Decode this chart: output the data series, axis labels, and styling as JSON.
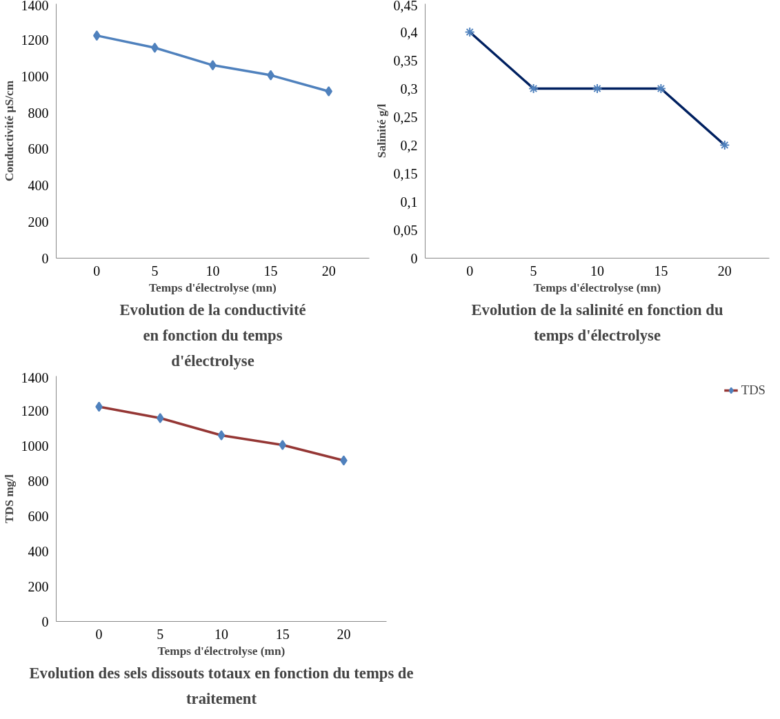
{
  "chart_data": [
    {
      "type": "line",
      "title": "Evolution de la conductivité en fonction du temps d'électrolyse",
      "xlabel": "Temps d'électrolyse (mn)",
      "ylabel": "Conductivité µS/cm",
      "categories": [
        "0",
        "5",
        "10",
        "15",
        "20"
      ],
      "series": [
        {
          "color": "#4f81bd",
          "values": [
            1225,
            1158,
            1062,
            1007,
            918
          ]
        }
      ],
      "ylim": [
        0,
        1400
      ],
      "yticks": [
        0,
        200,
        400,
        600,
        800,
        1000,
        1200,
        1400
      ],
      "marker": "diamond",
      "grid": false,
      "legend": false
    },
    {
      "type": "line",
      "title": "Evolution de la salinité en fonction du temps d'électrolyse",
      "xlabel": "Temps d'électrolyse (mn)",
      "ylabel": "Salinité g/l",
      "categories": [
        "0",
        "5",
        "10",
        "15",
        "20"
      ],
      "series": [
        {
          "color": "#002060",
          "values": [
            0.4,
            0.3,
            0.3,
            0.3,
            0.2
          ]
        }
      ],
      "ylim": [
        0,
        0.45
      ],
      "yticks": [
        0,
        {
          "value": 0.05,
          "label": "0,05"
        },
        {
          "value": 0.1,
          "label": "0,1"
        },
        {
          "value": 0.15,
          "label": "0,15"
        },
        {
          "value": 0.2,
          "label": "0,2"
        },
        {
          "value": 0.25,
          "label": "0,25"
        },
        {
          "value": 0.3,
          "label": "0,3"
        },
        {
          "value": 0.35,
          "label": "0,35"
        },
        {
          "value": 0.4,
          "label": "0,4"
        },
        {
          "value": 0.45,
          "label": "0,45"
        }
      ],
      "marker": "cross",
      "grid": false,
      "legend": false
    },
    {
      "type": "line",
      "title": "Evolution des sels dissouts totaux en fonction du temps de traitement",
      "xlabel": "Temps d'électrolyse (mn)",
      "ylabel": "TDS mg/l",
      "categories": [
        "0",
        "5",
        "10",
        "15",
        "20"
      ],
      "series": [
        {
          "name": "TDS",
          "color": "#953735",
          "values": [
            1225,
            1160,
            1062,
            1007,
            918
          ]
        }
      ],
      "ylim": [
        0,
        1400
      ],
      "yticks": [
        0,
        200,
        400,
        600,
        800,
        1000,
        1200,
        1400
      ],
      "marker": "diamond",
      "grid": false,
      "legend": "right"
    }
  ]
}
